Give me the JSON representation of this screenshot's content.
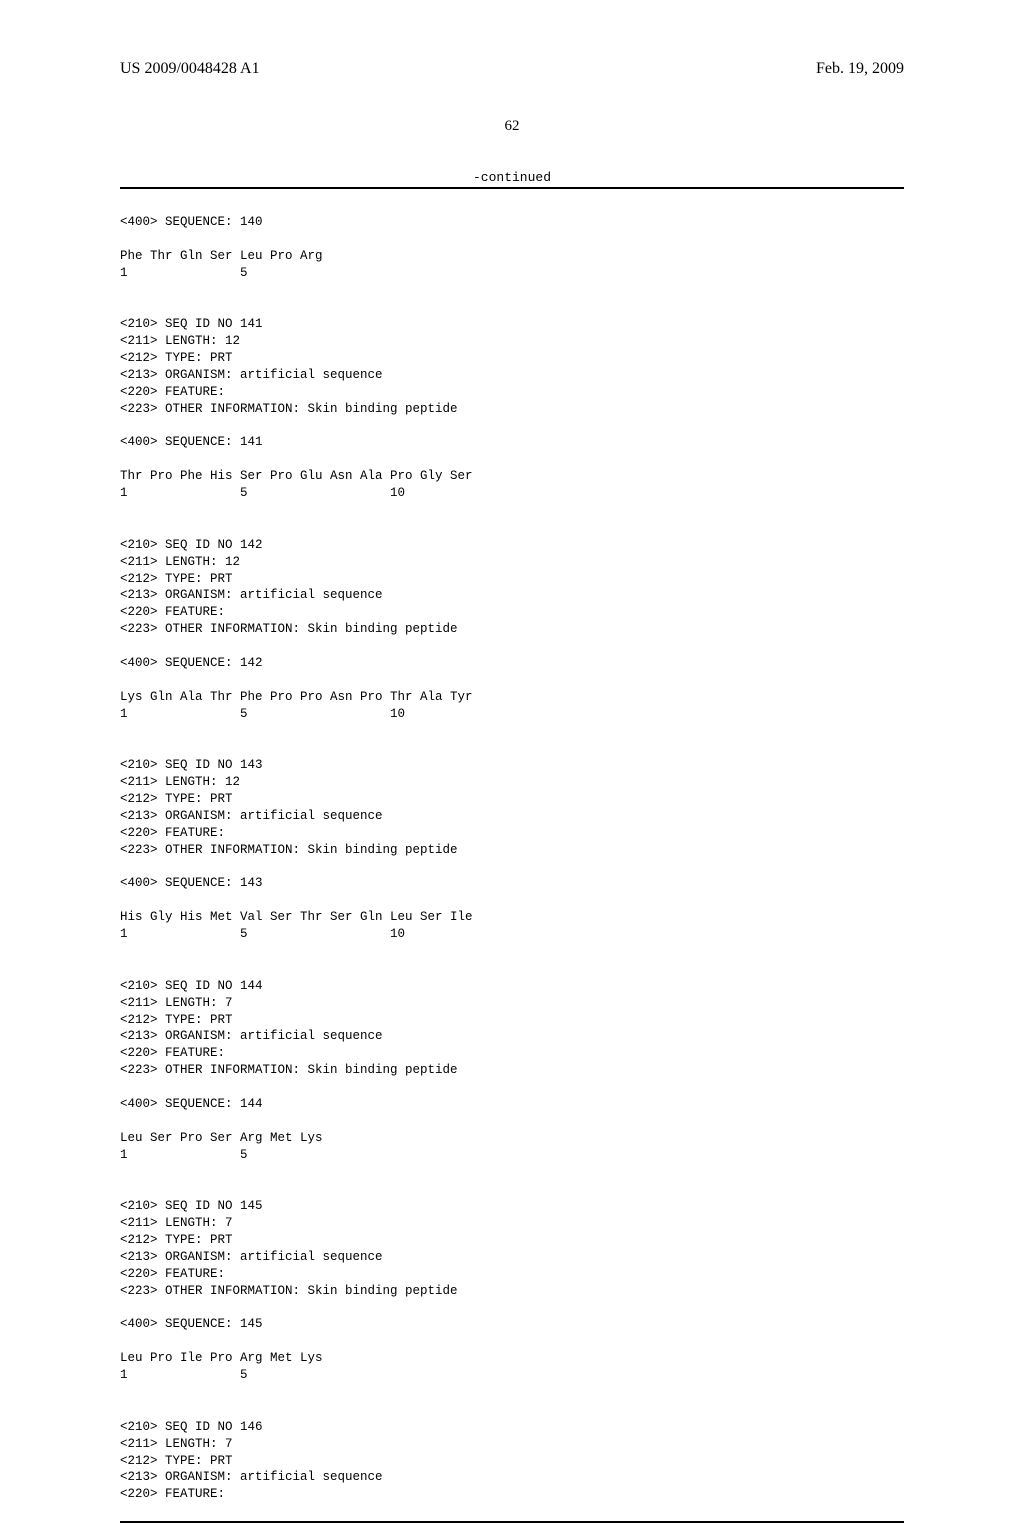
{
  "header": {
    "publication_id": "US 2009/0048428 A1",
    "publication_date": "Feb. 19, 2009"
  },
  "page_number": "62",
  "continued_label": "-continued",
  "sequences": [
    {
      "seq_intro": "<400> SEQUENCE: 140",
      "residues": "Phe Thr Gln Ser Leu Pro Arg",
      "positions": "1               5"
    },
    {
      "meta": [
        "<210> SEQ ID NO 141",
        "<211> LENGTH: 12",
        "<212> TYPE: PRT",
        "<213> ORGANISM: artificial sequence",
        "<220> FEATURE:",
        "<223> OTHER INFORMATION: Skin binding peptide"
      ],
      "seq_intro": "<400> SEQUENCE: 141",
      "residues": "Thr Pro Phe His Ser Pro Glu Asn Ala Pro Gly Ser",
      "positions": "1               5                   10"
    },
    {
      "meta": [
        "<210> SEQ ID NO 142",
        "<211> LENGTH: 12",
        "<212> TYPE: PRT",
        "<213> ORGANISM: artificial sequence",
        "<220> FEATURE:",
        "<223> OTHER INFORMATION: Skin binding peptide"
      ],
      "seq_intro": "<400> SEQUENCE: 142",
      "residues": "Lys Gln Ala Thr Phe Pro Pro Asn Pro Thr Ala Tyr",
      "positions": "1               5                   10"
    },
    {
      "meta": [
        "<210> SEQ ID NO 143",
        "<211> LENGTH: 12",
        "<212> TYPE: PRT",
        "<213> ORGANISM: artificial sequence",
        "<220> FEATURE:",
        "<223> OTHER INFORMATION: Skin binding peptide"
      ],
      "seq_intro": "<400> SEQUENCE: 143",
      "residues": "His Gly His Met Val Ser Thr Ser Gln Leu Ser Ile",
      "positions": "1               5                   10"
    },
    {
      "meta": [
        "<210> SEQ ID NO 144",
        "<211> LENGTH: 7",
        "<212> TYPE: PRT",
        "<213> ORGANISM: artificial sequence",
        "<220> FEATURE:",
        "<223> OTHER INFORMATION: Skin binding peptide"
      ],
      "seq_intro": "<400> SEQUENCE: 144",
      "residues": "Leu Ser Pro Ser Arg Met Lys",
      "positions": "1               5"
    },
    {
      "meta": [
        "<210> SEQ ID NO 145",
        "<211> LENGTH: 7",
        "<212> TYPE: PRT",
        "<213> ORGANISM: artificial sequence",
        "<220> FEATURE:",
        "<223> OTHER INFORMATION: Skin binding peptide"
      ],
      "seq_intro": "<400> SEQUENCE: 145",
      "residues": "Leu Pro Ile Pro Arg Met Lys",
      "positions": "1               5"
    },
    {
      "meta": [
        "<210> SEQ ID NO 146",
        "<211> LENGTH: 7",
        "<212> TYPE: PRT",
        "<213> ORGANISM: artificial sequence",
        "<220> FEATURE:"
      ]
    }
  ]
}
